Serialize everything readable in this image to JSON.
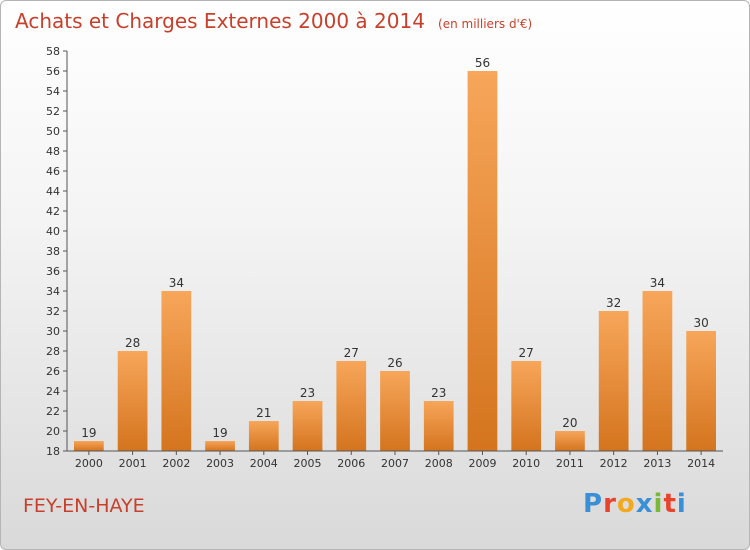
{
  "header": {
    "title": "Achats et Charges Externes 2000 à 2014",
    "unit": "(en milliers d'€)"
  },
  "footer": {
    "commune": "FEY-EN-HAYE",
    "logo_letters": [
      "P",
      "r",
      "o",
      "x",
      "i",
      "t",
      "i"
    ],
    "logo_colors": [
      "#3a8fd6",
      "#e8442c",
      "#f2a91f",
      "#3a8fd6",
      "#7ab83a",
      "#e8442c",
      "#3a8fd6"
    ]
  },
  "chart_data": {
    "type": "bar",
    "title": "Achats et Charges Externes 2000 à 2014",
    "categories": [
      "2000",
      "2001",
      "2002",
      "2003",
      "2004",
      "2005",
      "2006",
      "2007",
      "2008",
      "2009",
      "2010",
      "2011",
      "2012",
      "2013",
      "2014"
    ],
    "values": [
      19,
      28,
      34,
      19,
      21,
      23,
      27,
      26,
      23,
      56,
      27,
      20,
      32,
      34,
      30
    ],
    "ylim": [
      18,
      58
    ],
    "ytick_step": 2,
    "grid": false,
    "bar_color_top": "#f7a65a",
    "bar_color_bottom": "#d4741e",
    "text_color": "#333333",
    "axis_color": "#555555"
  }
}
